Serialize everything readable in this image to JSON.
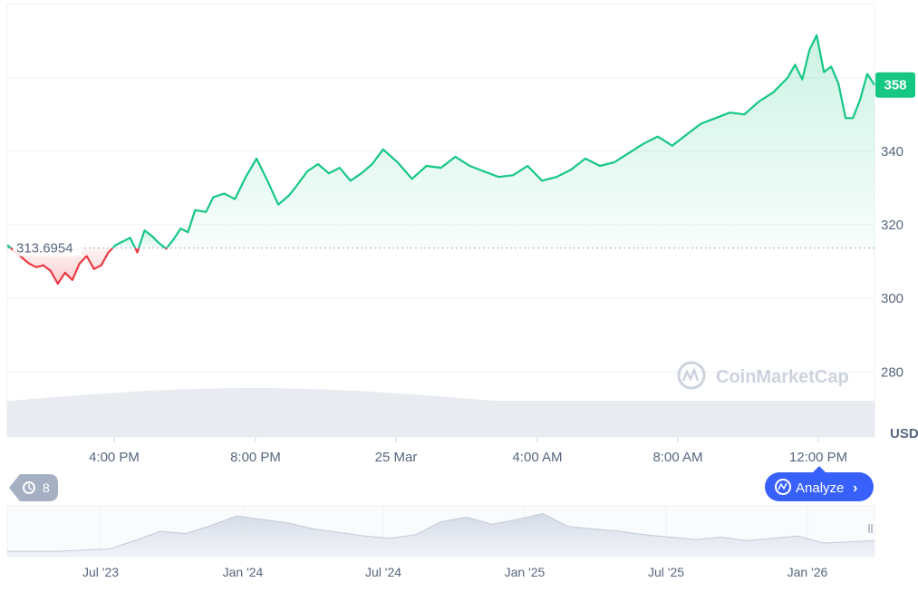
{
  "watermark": "CoinMarketCap",
  "analyze_button": {
    "label": "Analyze",
    "chevron": "›"
  },
  "history_badge": {
    "count": "8",
    "icon": "history-icon"
  },
  "colors": {
    "up": "#16c784",
    "down": "#ea3943",
    "grid": "#eff2f5",
    "axis_text": "#58667e",
    "accent": "#3861fb",
    "badge_bg": "#a6b0c3"
  },
  "chart_data": [
    {
      "type": "area",
      "currency_label": "USD",
      "baseline": {
        "value": 313.6954,
        "label": "313.6954"
      },
      "last_price": {
        "value": 358,
        "label": "358"
      },
      "ylim": [
        270,
        395
      ],
      "y_ticks": [
        280,
        300,
        320,
        340
      ],
      "y_tick_labels": [
        "280",
        "300",
        "320",
        "340"
      ],
      "x_tick_labels": [
        "4:00 PM",
        "8:00 PM",
        "25 Mar",
        "4:00 AM",
        "8:00 AM",
        "12:00 PM"
      ],
      "xlim_hours": [
        0,
        24
      ],
      "series": [
        {
          "x_hours": [
            0,
            0.6,
            0.8,
            1.0,
            1.2,
            1.4,
            1.6,
            1.8,
            2.0,
            2.2,
            2.4,
            2.6,
            2.8,
            3.0,
            3.2,
            3.4,
            3.6,
            3.8,
            4.0,
            4.2,
            4.4,
            4.6,
            4.8,
            5.0,
            5.2,
            5.5,
            5.7,
            6.0,
            6.3,
            6.6,
            6.9,
            7.2,
            7.5,
            7.8,
            8.0,
            8.3,
            8.6,
            8.9,
            9.2,
            9.5,
            9.8,
            10.1,
            10.4,
            10.8,
            11.2,
            11.6,
            12.0,
            12.4,
            12.8,
            13.2,
            13.6,
            14.0,
            14.4,
            14.8,
            15.2,
            15.6,
            16.0,
            16.4,
            16.8,
            17.2,
            17.6,
            18.0,
            18.4,
            18.8,
            19.2,
            19.6,
            20.0,
            20.4,
            20.8,
            21.2,
            21.6,
            21.8,
            22.0,
            22.2,
            22.4,
            22.6,
            22.8,
            23.0,
            23.2,
            23.4,
            23.6,
            23.8,
            24.0
          ],
          "values": [
            314.5,
            309.5,
            308.5,
            309.0,
            307.5,
            304.0,
            307.0,
            305.0,
            309.5,
            311.5,
            308.0,
            309.0,
            312.5,
            314.5,
            315.5,
            316.5,
            312.5,
            318.5,
            317.0,
            315.0,
            313.5,
            316.0,
            319.0,
            318.0,
            324.0,
            323.5,
            327.5,
            328.5,
            327.0,
            333.0,
            338.0,
            332.0,
            325.5,
            328.0,
            330.5,
            334.5,
            336.5,
            334.0,
            335.5,
            332.0,
            334.0,
            336.5,
            340.5,
            337.0,
            332.5,
            336.0,
            335.5,
            338.5,
            336.0,
            334.5,
            333.0,
            333.5,
            336.0,
            332.0,
            333.0,
            335.0,
            338.0,
            336.0,
            337.0,
            339.5,
            342.0,
            344.0,
            341.5,
            344.5,
            347.5,
            349.0,
            350.5,
            350.0,
            353.5,
            356.0,
            360.0,
            363.5,
            359.5,
            367.5,
            371.5,
            361.5,
            363.0,
            358.5,
            349.0,
            349.0,
            354.0,
            361.0,
            358.0
          ]
        }
      ]
    },
    {
      "type": "area",
      "x_tick_labels": [
        "Jul '23",
        "Jan '24",
        "Jul '24",
        "Jan '25",
        "Jul '25",
        "Jan '26"
      ],
      "xlim_months": [
        0,
        34
      ],
      "series": [
        {
          "x_months": [
            0,
            2,
            4,
            5,
            6,
            7,
            8,
            9,
            10,
            11,
            12,
            13,
            14,
            15,
            16,
            17,
            18,
            19,
            20,
            21,
            22,
            23,
            24,
            25,
            26,
            27,
            28,
            29,
            30,
            31,
            32,
            33,
            34
          ],
          "values": [
            3,
            3,
            5,
            12,
            20,
            18,
            25,
            33,
            30,
            27,
            22,
            19,
            16,
            14,
            17,
            28,
            32,
            26,
            30,
            35,
            24,
            22,
            20,
            17,
            15,
            13,
            15,
            12,
            14,
            16,
            10,
            11,
            12
          ]
        }
      ]
    }
  ]
}
